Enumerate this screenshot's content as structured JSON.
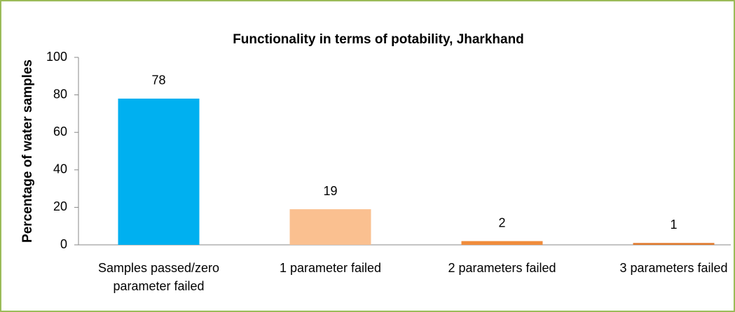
{
  "chart_data": {
    "type": "bar",
    "title": "Functionality in terms of potability, Jharkhand",
    "y_label": "Percentage of water samples",
    "categories": [
      "Samples passed/zero parameter failed",
      "1 parameter failed",
      "2 parameters failed",
      "3 parameters failed"
    ],
    "values": [
      78,
      19,
      2,
      1
    ],
    "colors": [
      "#00b0f0",
      "#fac090",
      "#f08c3c",
      "#e07b30"
    ],
    "ylim": [
      0,
      100
    ],
    "yticks": [
      0,
      20,
      40,
      60,
      80,
      100
    ],
    "grid": false
  }
}
